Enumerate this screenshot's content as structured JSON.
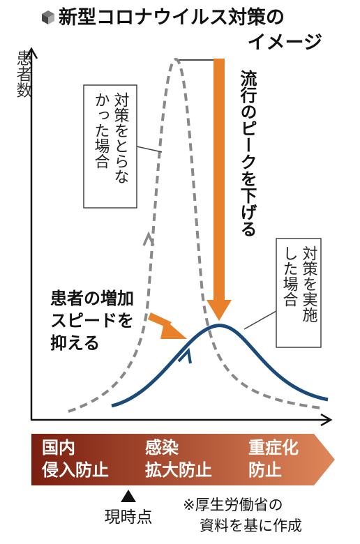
{
  "title": {
    "icon": "cube-icon",
    "line1": "新型コロナウイルス対策の",
    "line2": "イメージ"
  },
  "y_axis_label": "患者数",
  "curves": {
    "without_measures": {
      "label_lines": [
        "対策をとらな",
        "かった場合"
      ],
      "color": "#888888",
      "style": "dashed"
    },
    "with_measures": {
      "label_lines": [
        "対策を実施",
        "した場合"
      ],
      "color": "#1a4a7a",
      "style": "solid"
    }
  },
  "annotations": {
    "lower_peak": "流行のピークを下げる",
    "slow_growth": [
      "患者の増加",
      "スピードを",
      "抑える"
    ]
  },
  "accent_color": "#e8822a",
  "phases": [
    {
      "lines": [
        "国内",
        "侵入防止"
      ]
    },
    {
      "lines": [
        "感染",
        "拡大防止"
      ]
    },
    {
      "lines": [
        "重症化",
        "防止"
      ]
    }
  ],
  "phase_bar_colors": {
    "start": "#7a1e10",
    "end": "#e0875a"
  },
  "current_point": "現時点",
  "source": [
    "※厚生労働省の",
    "資料を基に作成"
  ]
}
